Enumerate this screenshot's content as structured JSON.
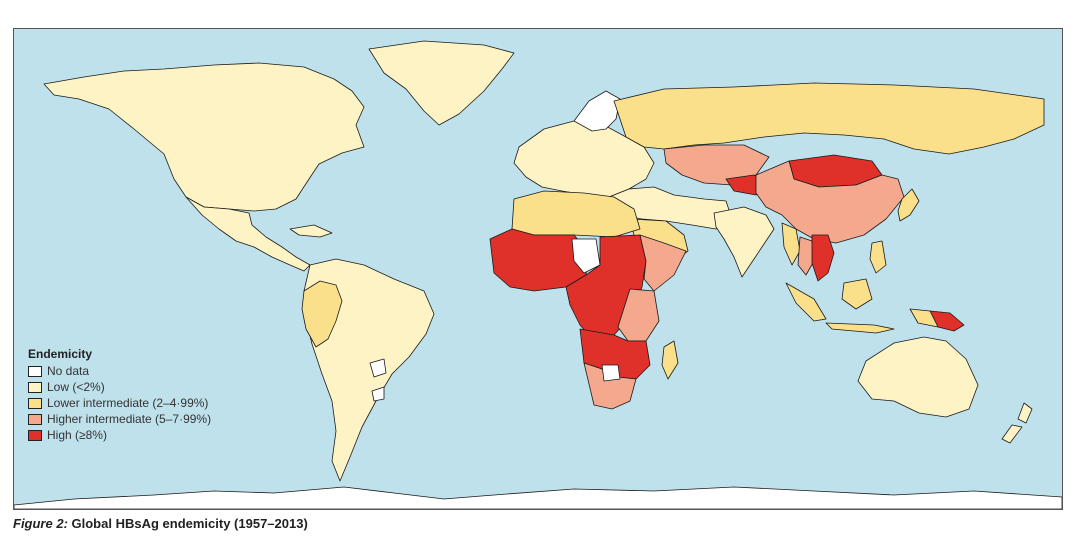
{
  "figure": {
    "label": "Figure 2:",
    "caption": " Global HBsAg endemicity (1957–2013)"
  },
  "legend": {
    "title": "Endemicity",
    "items": [
      {
        "key": "no_data",
        "label": "No data",
        "color": "#ffffff"
      },
      {
        "key": "low",
        "label": "Low (<2%)",
        "color": "#fdf3c4"
      },
      {
        "key": "lower",
        "label": "Lower intermediate (2–4·99%)",
        "color": "#fbe08c"
      },
      {
        "key": "higher",
        "label": "Higher intermediate (5–7·99%)",
        "color": "#f4a98e"
      },
      {
        "key": "high",
        "label": "High (≥8%)",
        "color": "#e0302a"
      }
    ]
  },
  "colors": {
    "ocean": "#bfe1ec",
    "antarctica": "#ffffff",
    "border": "#1a1a1a"
  },
  "regions": [
    {
      "name": "greenland",
      "category": "low"
    },
    {
      "name": "north-america",
      "category": "low"
    },
    {
      "name": "mexico-central-america",
      "category": "low"
    },
    {
      "name": "south-america",
      "category": "low"
    },
    {
      "name": "andean-region",
      "category": "lower"
    },
    {
      "name": "uruguay",
      "category": "no_data"
    },
    {
      "name": "europe",
      "category": "low"
    },
    {
      "name": "scandinavia",
      "category": "no_data"
    },
    {
      "name": "russia",
      "category": "lower"
    },
    {
      "name": "north-africa",
      "category": "lower"
    },
    {
      "name": "west-africa",
      "category": "high"
    },
    {
      "name": "central-africa",
      "category": "high"
    },
    {
      "name": "chad",
      "category": "no_data"
    },
    {
      "name": "horn-of-africa",
      "category": "higher"
    },
    {
      "name": "east-africa",
      "category": "higher"
    },
    {
      "name": "southern-africa",
      "category": "higher"
    },
    {
      "name": "mozambique-zambia",
      "category": "high"
    },
    {
      "name": "botswana",
      "category": "no_data"
    },
    {
      "name": "madagascar",
      "category": "lower"
    },
    {
      "name": "middle-east",
      "category": "low"
    },
    {
      "name": "arabia",
      "category": "lower"
    },
    {
      "name": "kazakhstan",
      "category": "higher"
    },
    {
      "name": "central-asia",
      "category": "high"
    },
    {
      "name": "china",
      "category": "higher"
    },
    {
      "name": "mongolia",
      "category": "high"
    },
    {
      "name": "india",
      "category": "low"
    },
    {
      "name": "myanmar",
      "category": "lower"
    },
    {
      "name": "thailand",
      "category": "higher"
    },
    {
      "name": "vietnam-laos",
      "category": "high"
    },
    {
      "name": "southeast-asia-islands",
      "category": "lower"
    },
    {
      "name": "papua-new-guinea",
      "category": "high"
    },
    {
      "name": "japan-korea",
      "category": "lower"
    },
    {
      "name": "australia",
      "category": "low"
    },
    {
      "name": "new-zealand",
      "category": "low"
    },
    {
      "name": "antarctica",
      "category": "no_data"
    }
  ]
}
